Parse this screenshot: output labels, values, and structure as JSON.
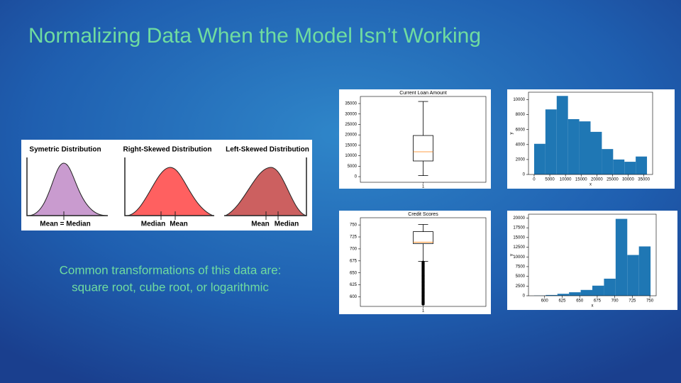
{
  "title": "Normalizing Data When the Model Isn’t Working",
  "caption": [
    "Common transformations of this data are:",
    "square root, cube root, or logarithmic"
  ],
  "distributions": [
    {
      "title": "Symetric Distribution",
      "labels": [
        "Mean = Median"
      ]
    },
    {
      "title": "Right-Skewed Distribution",
      "labels": [
        "Median",
        "Mean"
      ]
    },
    {
      "title": "Left-Skewed Distribution",
      "labels": [
        "Mean",
        "Median"
      ]
    }
  ],
  "chart_data": [
    {
      "type": "box",
      "title": "Current Loan Amount",
      "categories": [
        "1"
      ],
      "whisker_low": 500,
      "q1": 7500,
      "median": 11900,
      "q3": 19700,
      "whisker_high": 36000,
      "outliers": [],
      "ylim": [
        -2700,
        38400
      ],
      "yticks": [
        0,
        5000,
        10000,
        15000,
        20000,
        25000,
        30000,
        35000
      ]
    },
    {
      "type": "histogram",
      "xlabel": "x",
      "ylabel": "y",
      "color": "#1f77b4",
      "bins": [
        0,
        3600,
        7200,
        10800,
        14400,
        18000,
        21600,
        25200,
        28800,
        32400,
        36000
      ],
      "values": [
        4100,
        8700,
        10500,
        7400,
        7100,
        5700,
        3400,
        2000,
        1700,
        2400
      ],
      "xlim": [
        -1800,
        37800
      ],
      "xticks": [
        0,
        5000,
        10000,
        15000,
        20000,
        25000,
        30000,
        35000
      ],
      "ylim": [
        0,
        11000
      ],
      "yticks": [
        0,
        2000,
        4000,
        6000,
        8000,
        10000
      ]
    },
    {
      "type": "box",
      "title": "Credit Scores",
      "categories": [
        "1"
      ],
      "whisker_low": 674,
      "q1": 711,
      "median": 714,
      "q3": 736,
      "whisker_high": 751,
      "outliers": [
        585,
        588,
        591,
        594,
        597,
        600,
        603,
        606,
        609,
        612,
        615,
        618,
        621,
        624,
        627,
        630,
        633,
        636,
        639,
        642,
        645,
        648,
        651,
        654,
        657,
        660,
        663,
        666,
        669,
        672
      ],
      "ylim": [
        580,
        765
      ],
      "yticks": [
        600,
        625,
        650,
        675,
        700,
        725,
        750
      ]
    },
    {
      "type": "histogram",
      "xlabel": "x",
      "ylabel": "y",
      "color": "#1f77b4",
      "bins": [
        585,
        601.6,
        618.2,
        634.8,
        651.4,
        668,
        684.6,
        701.2,
        717.8,
        734.4,
        751
      ],
      "values": [
        50,
        200,
        500,
        900,
        1500,
        2600,
        4400,
        19800,
        10500,
        12700
      ],
      "xlim": [
        577,
        759
      ],
      "xticks": [
        600,
        625,
        650,
        675,
        700,
        725,
        750
      ],
      "ylim": [
        0,
        21000
      ],
      "yticks": [
        0,
        2500,
        5000,
        7500,
        10000,
        12500,
        15000,
        17500,
        20000
      ]
    }
  ]
}
